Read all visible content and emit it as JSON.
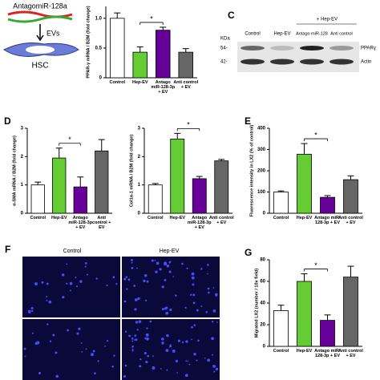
{
  "diagram": {
    "agent": "AntagomiR-128a",
    "arrow": "EVs",
    "cell": "HSC"
  },
  "blot": {
    "panel": "C",
    "unit": "KDa",
    "lanes": [
      "Control",
      "Hep-EV",
      "Antago miR-128",
      "Anti control"
    ],
    "group": "+ Hep-EV",
    "markers": [
      "54-",
      "42-"
    ],
    "proteins": [
      "PPARγ",
      "Actin"
    ]
  },
  "micrographs": {
    "panel": "F",
    "columns": [
      "Control",
      "Hep-EV"
    ]
  },
  "chart_data": [
    {
      "type": "bar",
      "ylabel": "PPAR-γ mRNA / B2M (fold change)",
      "categories": [
        "Control",
        "Hep-EV",
        "Antago miR-128-3p + EV",
        "Anti control + EV"
      ],
      "values": [
        1.0,
        0.43,
        0.8,
        0.43
      ],
      "errors": [
        0.09,
        0.09,
        0.05,
        0.06
      ],
      "colors": [
        "#ffffff",
        "#66cc33",
        "#660099",
        "#666666"
      ],
      "ylim": [
        0,
        1.2
      ],
      "yticks": [
        0,
        0.5,
        {
          "value": 1,
          "label": "1.0"
        }
      ],
      "significance": "*"
    },
    {
      "type": "bar",
      "panel": "D",
      "ylabel": "α-SMA mRNA / B2M (fold change)",
      "categories": [
        "Control",
        "Hep-EV",
        "Antago miR-128-3p + EV",
        "Anti control + EV"
      ],
      "values": [
        1.0,
        1.95,
        0.93,
        2.2
      ],
      "errors": [
        0.1,
        0.35,
        0.35,
        0.4
      ],
      "colors": [
        "#ffffff",
        "#66cc33",
        "#660099",
        "#666666"
      ],
      "ylim": [
        0,
        3
      ],
      "yticks": [
        0,
        1,
        2,
        3
      ],
      "significance": "*"
    },
    {
      "type": "bar",
      "ylabel": "Col1α-1 mRNA / B2M (fold change)",
      "categories": [
        "Control",
        "Hep-EV",
        "Antago miR-128-3p + EV",
        "Anti control + EV"
      ],
      "values": [
        1.0,
        2.62,
        1.22,
        1.85
      ],
      "errors": [
        0.05,
        0.2,
        0.08,
        0.05
      ],
      "colors": [
        "#ffffff",
        "#66cc33",
        "#660099",
        "#666666"
      ],
      "ylim": [
        0,
        3
      ],
      "yticks": [
        0,
        1,
        2,
        3
      ],
      "significance": "*"
    },
    {
      "type": "bar",
      "panel": "E",
      "ylabel": "Fluorescence intensity in LX2 (% of control)",
      "categories": [
        "Control",
        "Hep-EV",
        "Antago miR-128-3p + EV",
        "Anti control + EV"
      ],
      "values": [
        100,
        278,
        75,
        158
      ],
      "errors": [
        5,
        50,
        8,
        18
      ],
      "colors": [
        "#ffffff",
        "#66cc33",
        "#660099",
        "#666666"
      ],
      "ylim": [
        0,
        400
      ],
      "yticks": [
        0,
        100,
        200,
        300,
        400
      ],
      "significance": "*"
    },
    {
      "type": "bar",
      "panel": "G",
      "ylabel": "Migrated LX2 (number / 10x field)",
      "categories": [
        "Control",
        "Hep-EV",
        "Antago miR-128-3p + EV",
        "Anti control + EV"
      ],
      "values": [
        33,
        60,
        24,
        64
      ],
      "errors": [
        5,
        7,
        5,
        10
      ],
      "colors": [
        "#ffffff",
        "#66cc33",
        "#660099",
        "#666666"
      ],
      "ylim": [
        0,
        80
      ],
      "yticks": [
        0,
        20,
        40,
        60,
        80
      ],
      "significance": "*"
    }
  ]
}
